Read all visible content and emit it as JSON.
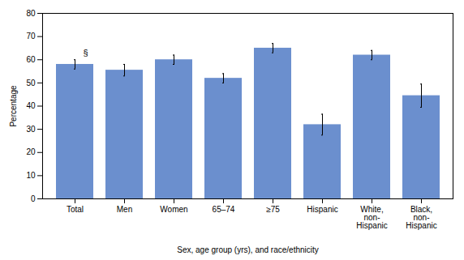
{
  "chart_data": {
    "type": "bar",
    "categories": [
      "Total",
      "Men",
      "Women",
      "65–74",
      "≥75",
      "Hispanic",
      "White,\nnon-\nHispanic",
      "Black,\nnon-\nHispanic"
    ],
    "values": [
      58.0,
      55.5,
      60.0,
      52.0,
      65.0,
      32.0,
      62.0,
      44.5
    ],
    "errors": [
      2.0,
      2.5,
      2.0,
      2.0,
      2.0,
      4.5,
      2.0,
      5.0
    ],
    "color": "#6b8fce",
    "ylabel": "Percentage",
    "xlabel": "Sex, age group (yrs), and race/ethnicity",
    "ylim": [
      0,
      80
    ],
    "yticks": [
      0,
      10,
      20,
      30,
      40,
      50,
      60,
      70,
      80
    ],
    "annotations": [
      {
        "text": "§",
        "category": "Total"
      }
    ],
    "grid": false
  }
}
